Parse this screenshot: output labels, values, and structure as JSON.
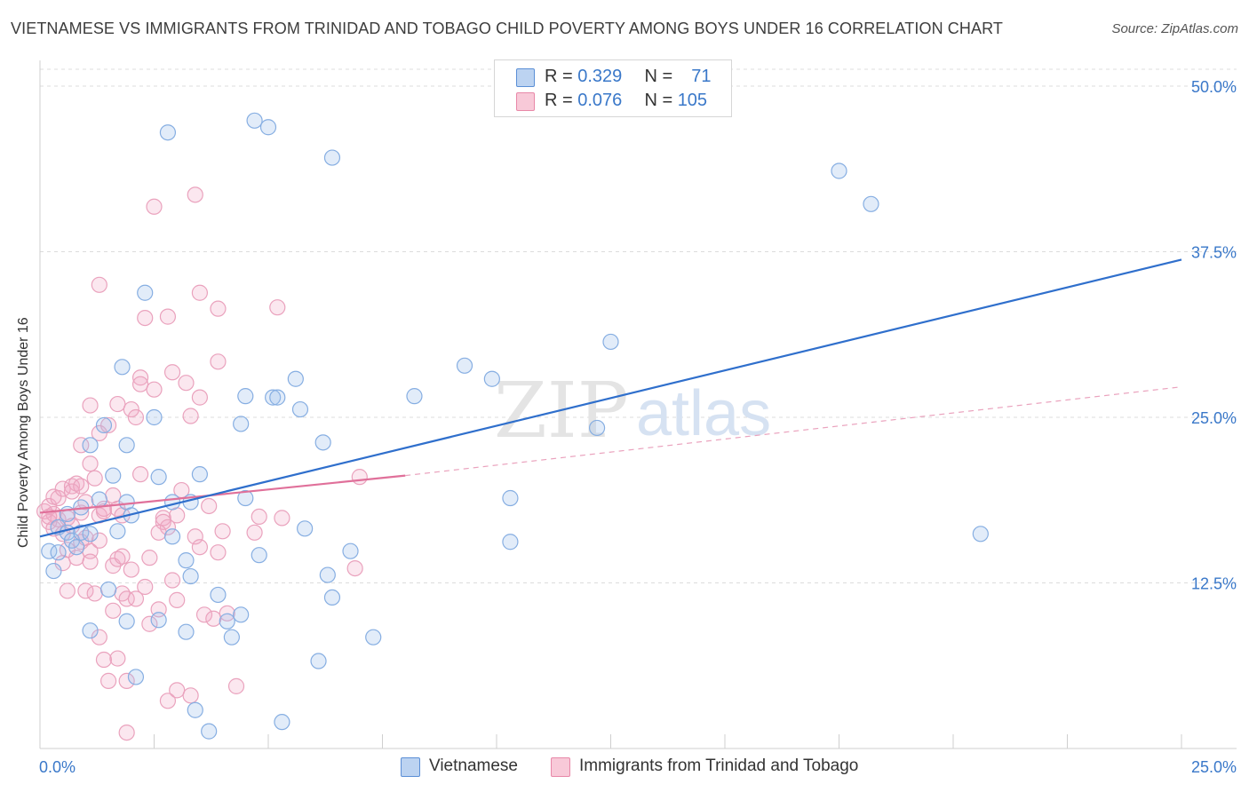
{
  "title": "VIETNAMESE VS IMMIGRANTS FROM TRINIDAD AND TOBAGO CHILD POVERTY AMONG BOYS UNDER 16 CORRELATION CHART",
  "source": "Source: ZipAtlas.com",
  "watermark": "ZIPatlas",
  "legend": {
    "series1": {
      "r_label": "R =",
      "r_value": "0.329",
      "n_label": "N =",
      "n_value": "71"
    },
    "series2": {
      "r_label": "R =",
      "r_value": "0.076",
      "n_label": "N =",
      "n_value": "105"
    }
  },
  "colors": {
    "series1": "#5b8fd6",
    "series2": "#e888a8",
    "axis_text": "#3a78c9"
  },
  "chart_data": {
    "type": "scatter",
    "ylabel": "Child Poverty Among Boys Under 16",
    "xlim": [
      0,
      25
    ],
    "ylim": [
      0,
      50
    ],
    "x_ticks": [
      "0.0%",
      "25.0%"
    ],
    "y_ticks": [
      {
        "v": 12.5,
        "label": "12.5%"
      },
      {
        "v": 25,
        "label": "25.0%"
      },
      {
        "v": 37.5,
        "label": "37.5%"
      },
      {
        "v": 50,
        "label": "50.0%"
      }
    ],
    "series": [
      {
        "name": "Vietnamese",
        "color": "#5b8fd6",
        "trend": {
          "x": [
            0,
            25
          ],
          "y": [
            16.0,
            36.9
          ],
          "style": "solid"
        },
        "points": [
          [
            0.2,
            14.9
          ],
          [
            0.3,
            13.4
          ],
          [
            0.4,
            14.8
          ],
          [
            0.4,
            16.7
          ],
          [
            0.6,
            16.3
          ],
          [
            0.7,
            15.7
          ],
          [
            0.8,
            15.2
          ],
          [
            0.9,
            16.3
          ],
          [
            1.1,
            16.2
          ],
          [
            1.1,
            8.9
          ],
          [
            1.3,
            18.8
          ],
          [
            1.4,
            24.4
          ],
          [
            1.5,
            12.0
          ],
          [
            1.6,
            20.6
          ],
          [
            1.7,
            16.4
          ],
          [
            1.8,
            28.8
          ],
          [
            1.9,
            18.6
          ],
          [
            1.9,
            9.6
          ],
          [
            2.0,
            17.6
          ],
          [
            2.3,
            34.4
          ],
          [
            2.5,
            25.0
          ],
          [
            2.6,
            20.5
          ],
          [
            2.6,
            9.7
          ],
          [
            2.9,
            18.6
          ],
          [
            3.2,
            14.2
          ],
          [
            3.2,
            8.8
          ],
          [
            3.3,
            13.0
          ],
          [
            3.4,
            2.9
          ],
          [
            3.5,
            20.7
          ],
          [
            3.7,
            1.3
          ],
          [
            3.9,
            11.6
          ],
          [
            4.1,
            9.6
          ],
          [
            4.2,
            8.4
          ],
          [
            4.4,
            24.5
          ],
          [
            4.5,
            18.9
          ],
          [
            4.4,
            10.1
          ],
          [
            4.5,
            26.6
          ],
          [
            4.8,
            14.6
          ],
          [
            5.1,
            26.5
          ],
          [
            5.2,
            26.5
          ],
          [
            5.3,
            2.0
          ],
          [
            5.6,
            27.9
          ],
          [
            5.7,
            25.6
          ],
          [
            5.8,
            16.6
          ],
          [
            6.2,
            23.1
          ],
          [
            6.3,
            13.1
          ],
          [
            6.4,
            11.4
          ],
          [
            6.1,
            6.6
          ],
          [
            6.8,
            14.9
          ],
          [
            7.3,
            8.4
          ],
          [
            8.2,
            26.6
          ],
          [
            9.3,
            28.9
          ],
          [
            9.9,
            27.9
          ],
          [
            10.3,
            18.9
          ],
          [
            10.3,
            15.6
          ],
          [
            12.2,
            24.2
          ],
          [
            12.5,
            30.7
          ],
          [
            17.5,
            43.6
          ],
          [
            18.2,
            41.1
          ],
          [
            20.6,
            16.2
          ],
          [
            2.8,
            46.5
          ],
          [
            4.7,
            47.4
          ],
          [
            5.0,
            46.9
          ],
          [
            6.4,
            44.6
          ],
          [
            1.1,
            22.9
          ],
          [
            1.9,
            22.9
          ],
          [
            3.3,
            18.6
          ],
          [
            0.6,
            17.7
          ],
          [
            0.9,
            18.2
          ],
          [
            2.1,
            5.4
          ],
          [
            2.9,
            16.0
          ]
        ]
      },
      {
        "name": "Immigrants from Trinidad and Tobago",
        "color": "#e888a8",
        "trend": {
          "x": [
            0,
            8
          ],
          "y": [
            17.8,
            20.6
          ],
          "style": "solid"
        },
        "trend_dashed": {
          "x": [
            8,
            25
          ],
          "y": [
            20.6,
            27.3
          ]
        },
        "points": [
          [
            0.1,
            17.9
          ],
          [
            0.2,
            18.3
          ],
          [
            0.2,
            17.1
          ],
          [
            0.3,
            19.0
          ],
          [
            0.3,
            16.6
          ],
          [
            0.3,
            17.7
          ],
          [
            0.4,
            17.3
          ],
          [
            0.4,
            18.9
          ],
          [
            0.5,
            19.6
          ],
          [
            0.5,
            14.0
          ],
          [
            0.6,
            17.4
          ],
          [
            0.6,
            11.9
          ],
          [
            0.7,
            16.8
          ],
          [
            0.7,
            19.8
          ],
          [
            0.8,
            20.0
          ],
          [
            0.8,
            14.4
          ],
          [
            0.9,
            17.8
          ],
          [
            0.9,
            22.9
          ],
          [
            0.9,
            15.6
          ],
          [
            1.0,
            11.9
          ],
          [
            1.0,
            18.6
          ],
          [
            1.1,
            14.9
          ],
          [
            1.1,
            21.5
          ],
          [
            1.1,
            14.1
          ],
          [
            1.2,
            11.7
          ],
          [
            1.2,
            20.4
          ],
          [
            1.3,
            15.7
          ],
          [
            1.3,
            23.8
          ],
          [
            1.3,
            17.6
          ],
          [
            1.3,
            8.4
          ],
          [
            1.4,
            17.9
          ],
          [
            1.4,
            18.1
          ],
          [
            1.4,
            6.7
          ],
          [
            1.5,
            24.4
          ],
          [
            1.5,
            5.1
          ],
          [
            1.6,
            13.8
          ],
          [
            1.6,
            19.1
          ],
          [
            1.7,
            14.3
          ],
          [
            1.7,
            26.0
          ],
          [
            1.7,
            18.1
          ],
          [
            1.7,
            6.8
          ],
          [
            1.8,
            14.5
          ],
          [
            1.8,
            11.7
          ],
          [
            1.8,
            17.6
          ],
          [
            1.9,
            5.1
          ],
          [
            1.9,
            11.3
          ],
          [
            2.0,
            13.5
          ],
          [
            2.0,
            25.6
          ],
          [
            2.1,
            25.0
          ],
          [
            2.1,
            11.3
          ],
          [
            2.2,
            28.0
          ],
          [
            2.2,
            27.5
          ],
          [
            2.2,
            20.7
          ],
          [
            2.3,
            32.5
          ],
          [
            2.3,
            12.2
          ],
          [
            2.4,
            14.4
          ],
          [
            2.4,
            9.4
          ],
          [
            2.5,
            27.1
          ],
          [
            2.5,
            40.9
          ],
          [
            2.6,
            10.5
          ],
          [
            2.7,
            17.4
          ],
          [
            2.7,
            17.1
          ],
          [
            2.8,
            3.6
          ],
          [
            2.8,
            16.7
          ],
          [
            2.8,
            32.6
          ],
          [
            2.9,
            28.4
          ],
          [
            2.9,
            12.7
          ],
          [
            3.0,
            11.2
          ],
          [
            3.0,
            17.6
          ],
          [
            3.0,
            4.4
          ],
          [
            3.1,
            19.5
          ],
          [
            3.2,
            27.6
          ],
          [
            3.3,
            4.0
          ],
          [
            3.3,
            25.1
          ],
          [
            3.4,
            16.0
          ],
          [
            3.4,
            41.8
          ],
          [
            3.5,
            34.4
          ],
          [
            3.5,
            26.5
          ],
          [
            3.5,
            15.2
          ],
          [
            3.6,
            10.1
          ],
          [
            3.7,
            18.3
          ],
          [
            3.8,
            9.8
          ],
          [
            3.9,
            33.2
          ],
          [
            3.9,
            29.2
          ],
          [
            3.9,
            14.8
          ],
          [
            4.0,
            16.4
          ],
          [
            4.1,
            10.2
          ],
          [
            4.3,
            4.7
          ],
          [
            4.7,
            16.3
          ],
          [
            4.8,
            17.5
          ],
          [
            5.2,
            33.3
          ],
          [
            5.3,
            17.4
          ],
          [
            6.9,
            13.6
          ],
          [
            7.0,
            20.5
          ],
          [
            1.3,
            35.0
          ],
          [
            1.1,
            25.9
          ],
          [
            1.9,
            1.2
          ],
          [
            0.5,
            16.2
          ],
          [
            0.7,
            19.4
          ],
          [
            0.2,
            17.5
          ],
          [
            0.6,
            15.0
          ],
          [
            1.0,
            15.9
          ],
          [
            1.6,
            10.4
          ],
          [
            2.6,
            16.3
          ],
          [
            0.9,
            19.8
          ]
        ]
      }
    ]
  },
  "bottom_legend": [
    "Vietnamese",
    "Immigrants from Trinidad and Tobago"
  ]
}
